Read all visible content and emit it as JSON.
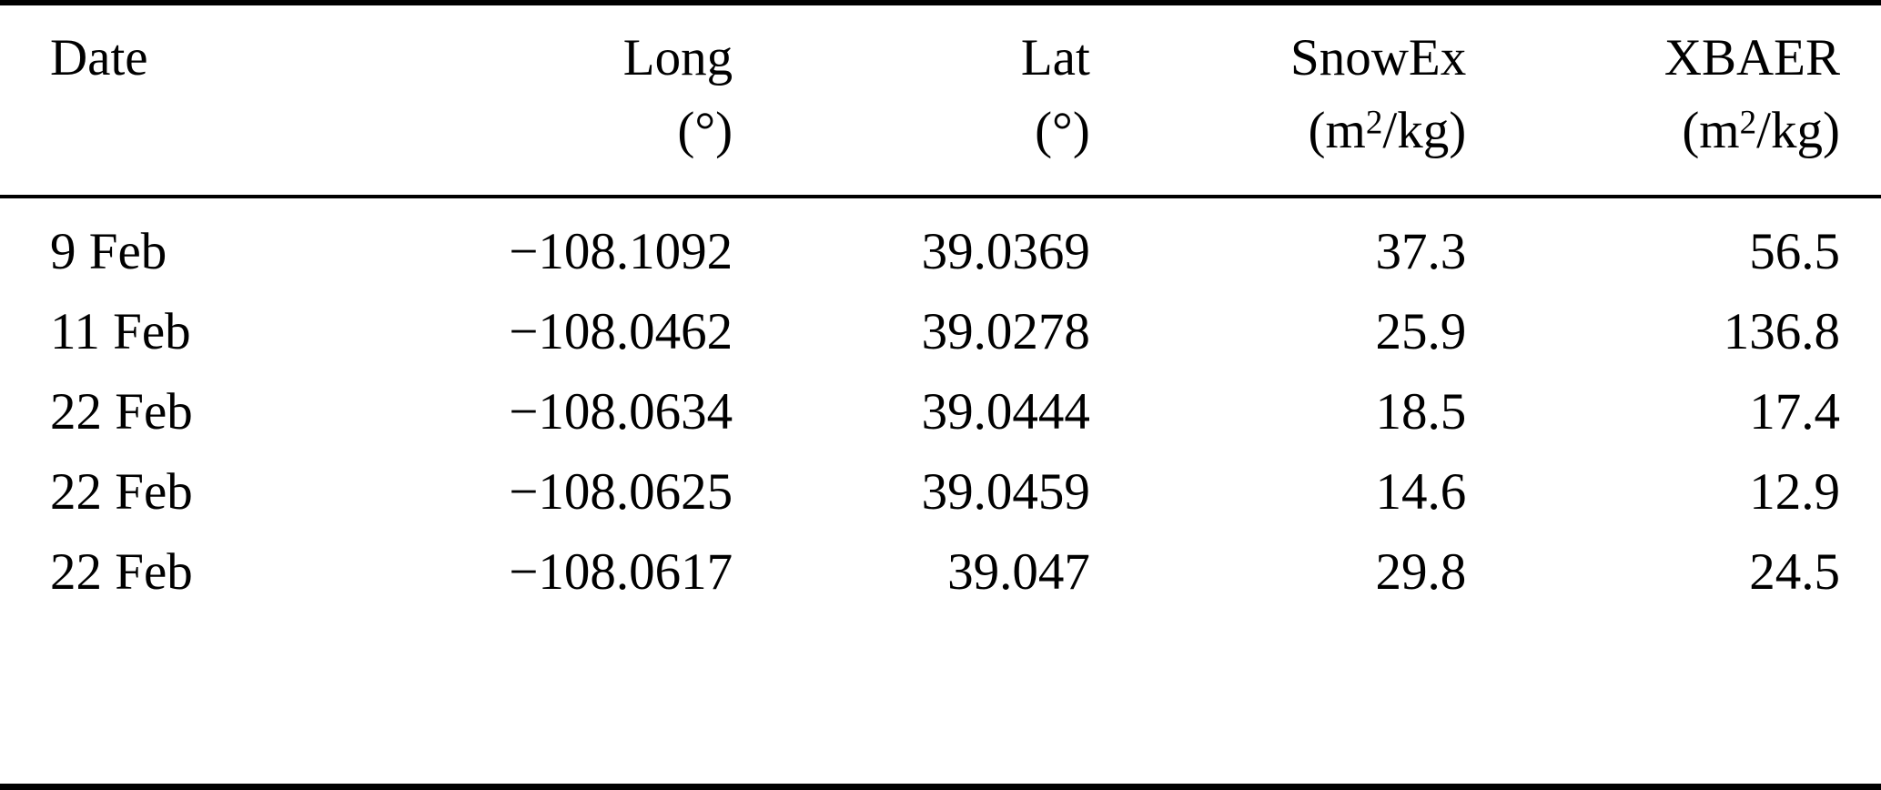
{
  "colors": {
    "background": "#ffffff",
    "text": "#000000",
    "rules": "#000000"
  },
  "table": {
    "columns": [
      {
        "label": "Date",
        "unit_main": "",
        "unit_sup": "",
        "unit_rest": ""
      },
      {
        "label": "Long",
        "unit_main": "(°)",
        "unit_sup": "",
        "unit_rest": ""
      },
      {
        "label": "Lat",
        "unit_main": "(°)",
        "unit_sup": "",
        "unit_rest": ""
      },
      {
        "label": "SnowEx",
        "unit_main": "(m",
        "unit_sup": "2",
        "unit_rest": "/kg)"
      },
      {
        "label": "XBAER",
        "unit_main": "(m",
        "unit_sup": "2",
        "unit_rest": "/kg)"
      }
    ],
    "rows": [
      [
        "9 Feb",
        "−108.1092",
        "39.0369",
        "37.3",
        "56.5"
      ],
      [
        "11 Feb",
        "−108.0462",
        "39.0278",
        "25.9",
        "136.8"
      ],
      [
        "22 Feb",
        "−108.0634",
        "39.0444",
        "18.5",
        "17.4"
      ],
      [
        "22 Feb",
        "−108.0625",
        "39.0459",
        "14.6",
        "12.9"
      ],
      [
        "22 Feb",
        "−108.0617",
        "39.047",
        "29.8",
        "24.5"
      ]
    ]
  }
}
